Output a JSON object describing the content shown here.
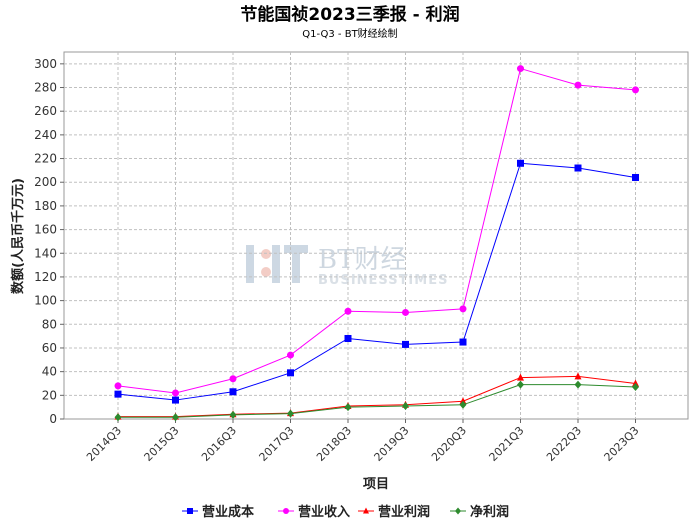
{
  "chart_data": {
    "type": "line",
    "title": "节能国祯2023三季报 - 利润",
    "subtitle": "Q1-Q3 - BT财经绘制",
    "xlabel": "项目",
    "ylabel": "数额(人民币千万元)",
    "ylim": [
      0,
      310
    ],
    "yticks": [
      0,
      20,
      40,
      60,
      80,
      100,
      120,
      140,
      160,
      180,
      200,
      220,
      240,
      260,
      280,
      300
    ],
    "grid": true,
    "legend_position": "bottom",
    "categories": [
      "2014Q3",
      "2015Q3",
      "2016Q3",
      "2017Q3",
      "2018Q3",
      "2019Q3",
      "2020Q3",
      "2021Q3",
      "2022Q3",
      "2023Q3"
    ],
    "series": [
      {
        "name": "营业成本",
        "color": "#0000ff",
        "marker": "square",
        "values": [
          21,
          16,
          23,
          39,
          68,
          63,
          65,
          216,
          212,
          204
        ]
      },
      {
        "name": "营业收入",
        "color": "#ff00ff",
        "marker": "circle",
        "values": [
          28,
          22,
          34,
          54,
          91,
          90,
          93,
          296,
          282,
          278
        ]
      },
      {
        "name": "营业利润",
        "color": "#ff0000",
        "marker": "triangle",
        "values": [
          2,
          2,
          4,
          5,
          11,
          12,
          15,
          35,
          36,
          30
        ]
      },
      {
        "name": "净利润",
        "color": "#2e8b2e",
        "marker": "diamond",
        "values": [
          1.5,
          1.5,
          3.5,
          4.5,
          10,
          11,
          12,
          29,
          29,
          27
        ]
      }
    ]
  },
  "watermark": {
    "brand": "BT财经",
    "sub": "BUSINESSTIMES"
  }
}
